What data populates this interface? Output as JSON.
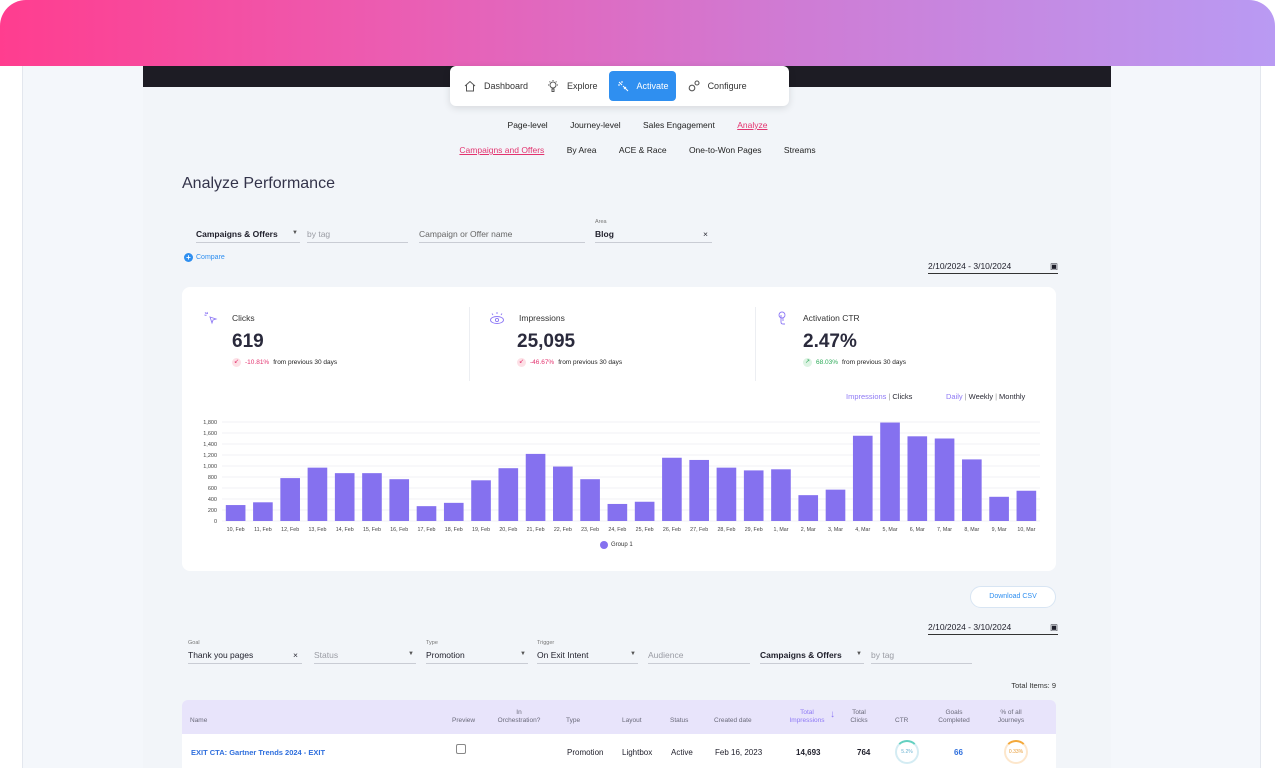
{
  "main_nav": [
    {
      "label": "Dashboard",
      "icon": "home-icon",
      "active": false
    },
    {
      "label": "Explore",
      "icon": "explore-icon",
      "active": false
    },
    {
      "label": "Activate",
      "icon": "activate-icon",
      "active": true
    },
    {
      "label": "Configure",
      "icon": "configure-icon",
      "active": false
    }
  ],
  "sub_nav": [
    {
      "label": "Page-level",
      "active": false
    },
    {
      "label": "Journey-level",
      "active": false
    },
    {
      "label": "Sales Engagement",
      "active": false
    },
    {
      "label": "Analyze",
      "active": true
    }
  ],
  "sub_nav2": [
    {
      "label": "Campaigns and Offers",
      "active": true
    },
    {
      "label": "By Area",
      "active": false
    },
    {
      "label": "ACE & Race",
      "active": false
    },
    {
      "label": "One-to-Won Pages",
      "active": false
    },
    {
      "label": "Streams",
      "active": false
    }
  ],
  "page_title": "Analyze Performance",
  "filters": {
    "type_select": "Campaigns & Offers",
    "tag_placeholder": "by tag",
    "name_placeholder": "Campaign or Offer name",
    "area_label": "Area",
    "area_value": "Blog",
    "clear": "×",
    "compare": "Compare",
    "compare_icon": "+"
  },
  "date_range": "2/10/2024 - 3/10/2024",
  "metrics": [
    {
      "label": "Clicks",
      "icon": "cursor-click-icon",
      "value": "619",
      "change": "-10.81%",
      "direction": "down",
      "suffix": "from previous 30 days"
    },
    {
      "label": "Impressions",
      "icon": "eye-icon",
      "value": "25,095",
      "change": "-46.67%",
      "direction": "down",
      "suffix": "from previous 30 days"
    },
    {
      "label": "Activation CTR",
      "icon": "touch-icon",
      "value": "2.47%",
      "change": "68.03%",
      "direction": "up",
      "suffix": "from previous 30 days"
    }
  ],
  "chart_toggles": {
    "metric": [
      "Impressions",
      "Clicks"
    ],
    "period": [
      "Daily",
      "Weekly",
      "Monthly"
    ],
    "separator": "|"
  },
  "chart_data": {
    "type": "bar",
    "categories": [
      "10, Feb",
      "11, Feb",
      "12, Feb",
      "13, Feb",
      "14, Feb",
      "15, Feb",
      "16, Feb",
      "17, Feb",
      "18, Feb",
      "19, Feb",
      "20, Feb",
      "21, Feb",
      "22, Feb",
      "23, Feb",
      "24, Feb",
      "25, Feb",
      "26, Feb",
      "27, Feb",
      "28, Feb",
      "29, Feb",
      "1, Mar",
      "2, Mar",
      "3, Mar",
      "4, Mar",
      "5, Mar",
      "6, Mar",
      "7, Mar",
      "8, Mar",
      "9, Mar",
      "10, Mar"
    ],
    "series": [
      {
        "name": "Group 1",
        "values": [
          290,
          340,
          780,
          970,
          870,
          870,
          760,
          270,
          330,
          740,
          960,
          1220,
          990,
          760,
          310,
          350,
          1150,
          1110,
          970,
          920,
          940,
          470,
          570,
          1550,
          1790,
          1540,
          1500,
          1120,
          440,
          550
        ]
      }
    ],
    "yticks": [
      "0",
      "200",
      "400",
      "600",
      "800",
      "1,000",
      "1,200",
      "1,400",
      "1,600",
      "1,800"
    ],
    "ylim": [
      0,
      1800
    ],
    "color": "#8571ef",
    "grid": true,
    "legend": "bottom-center"
  },
  "download_csv": "Download CSV",
  "table_filters": {
    "goal_label": "Goal",
    "goal_value": "Thank you pages",
    "goal_clear": "×",
    "status_placeholder": "Status",
    "type_label": "Type",
    "type_value": "Promotion",
    "trigger_label": "Trigger",
    "trigger_value": "On Exit Intent",
    "audience_placeholder": "Audience",
    "campaign_select": "Campaigns & Offers",
    "tag_placeholder": "by tag"
  },
  "total_items": "Total Items: 9",
  "table": {
    "headers": {
      "name": "Name",
      "preview": "Preview",
      "in_orch_1": "In",
      "in_orch_2": "Orchestration?",
      "type": "Type",
      "layout": "Layout",
      "status": "Status",
      "created": "Created date",
      "impressions_1": "Total",
      "impressions_2": "Impressions",
      "sort_icon": "↓",
      "clicks_1": "Total",
      "clicks_2": "Clicks",
      "ctr": "CTR",
      "goals_1": "Goals",
      "goals_2": "Completed",
      "journeys_1": "% of all",
      "journeys_2": "Journeys"
    },
    "rows": [
      {
        "name": "EXIT CTA: Gartner Trends 2024 - EXIT",
        "type": "Promotion",
        "layout": "Lightbox",
        "status": "Active",
        "created": "Feb 16, 2023",
        "impressions": "14,693",
        "clicks": "764",
        "ctr": "5.2%",
        "goals": "66",
        "journeys": "0.33%"
      }
    ]
  }
}
